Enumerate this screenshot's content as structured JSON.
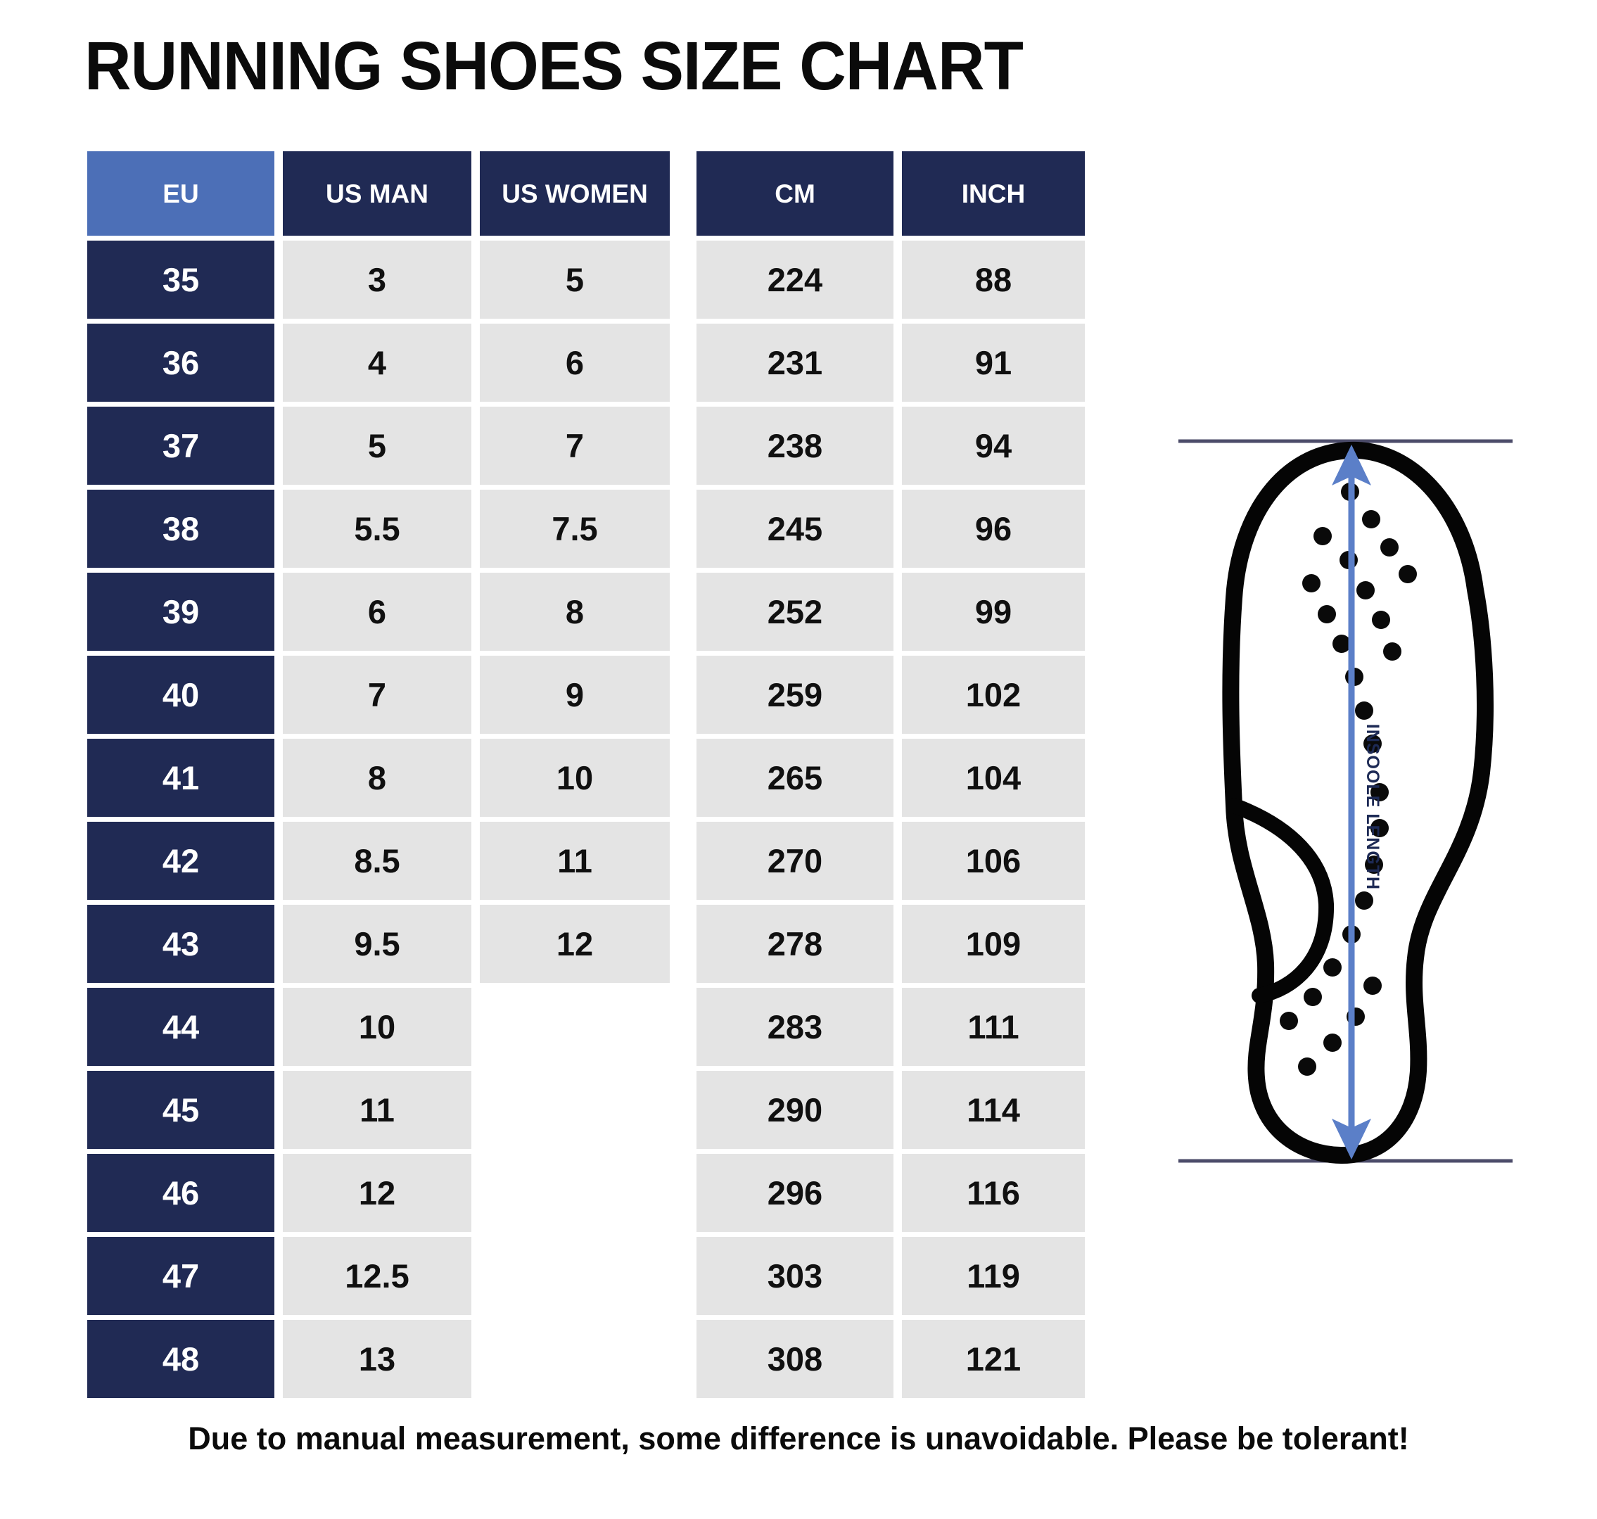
{
  "title": "RUNNING SHOES SIZE CHART",
  "footer": "Due to manual measurement, some difference is unavoidable. Please be tolerant!",
  "diagram": {
    "label": "INSOOLE LENGTH"
  },
  "table": {
    "columns": [
      "EU",
      "US MAN",
      "US WOMEN",
      "CM",
      "INCH"
    ],
    "rows": [
      {
        "eu": "35",
        "us_man": "3",
        "us_women": "5",
        "cm": "224",
        "inch": "88"
      },
      {
        "eu": "36",
        "us_man": "4",
        "us_women": "6",
        "cm": "231",
        "inch": "91"
      },
      {
        "eu": "37",
        "us_man": "5",
        "us_women": "7",
        "cm": "238",
        "inch": "94"
      },
      {
        "eu": "38",
        "us_man": "5.5",
        "us_women": "7.5",
        "cm": "245",
        "inch": "96"
      },
      {
        "eu": "39",
        "us_man": "6",
        "us_women": "8",
        "cm": "252",
        "inch": "99"
      },
      {
        "eu": "40",
        "us_man": "7",
        "us_women": "9",
        "cm": "259",
        "inch": "102"
      },
      {
        "eu": "41",
        "us_man": "8",
        "us_women": "10",
        "cm": "265",
        "inch": "104"
      },
      {
        "eu": "42",
        "us_man": "8.5",
        "us_women": "11",
        "cm": "270",
        "inch": "106"
      },
      {
        "eu": "43",
        "us_man": "9.5",
        "us_women": "12",
        "cm": "278",
        "inch": "109"
      },
      {
        "eu": "44",
        "us_man": "10",
        "us_women": "",
        "cm": "283",
        "inch": "111"
      },
      {
        "eu": "45",
        "us_man": "11",
        "us_women": "",
        "cm": "290",
        "inch": "114"
      },
      {
        "eu": "46",
        "us_man": "12",
        "us_women": "",
        "cm": "296",
        "inch": "116"
      },
      {
        "eu": "47",
        "us_man": "12.5",
        "us_women": "",
        "cm": "303",
        "inch": "119"
      },
      {
        "eu": "48",
        "us_man": "13",
        "us_women": "",
        "cm": "308",
        "inch": "121"
      }
    ]
  },
  "chart_data": {
    "type": "table",
    "title": "RUNNING SHOES SIZE CHART",
    "columns": [
      "EU",
      "US MAN",
      "US WOMEN",
      "CM",
      "INCH"
    ],
    "rows": [
      [
        "35",
        "3",
        "5",
        "224",
        "88"
      ],
      [
        "36",
        "4",
        "6",
        "231",
        "91"
      ],
      [
        "37",
        "5",
        "7",
        "238",
        "94"
      ],
      [
        "38",
        "5.5",
        "7.5",
        "245",
        "96"
      ],
      [
        "39",
        "6",
        "8",
        "252",
        "99"
      ],
      [
        "40",
        "7",
        "9",
        "259",
        "102"
      ],
      [
        "41",
        "8",
        "10",
        "265",
        "104"
      ],
      [
        "42",
        "8.5",
        "11",
        "270",
        "106"
      ],
      [
        "43",
        "9.5",
        "12",
        "278",
        "109"
      ],
      [
        "44",
        "10",
        "",
        "283",
        "111"
      ],
      [
        "45",
        "11",
        "",
        "290",
        "114"
      ],
      [
        "46",
        "12",
        "",
        "296",
        "116"
      ],
      [
        "47",
        "12.5",
        "",
        "303",
        "119"
      ],
      [
        "48",
        "13",
        "",
        "308",
        "121"
      ]
    ],
    "note": "Due to manual measurement, some difference is unavoidable. Please be tolerant!"
  },
  "colors": {
    "navy": "#202a54",
    "header_blue": "#4c6fb7",
    "cell_gray": "#e4e4e4",
    "arrow_blue": "#5b7fc8",
    "line": "#4c4c6a",
    "label_navy": "#1d2a55",
    "ink": "#0b0b0b"
  }
}
